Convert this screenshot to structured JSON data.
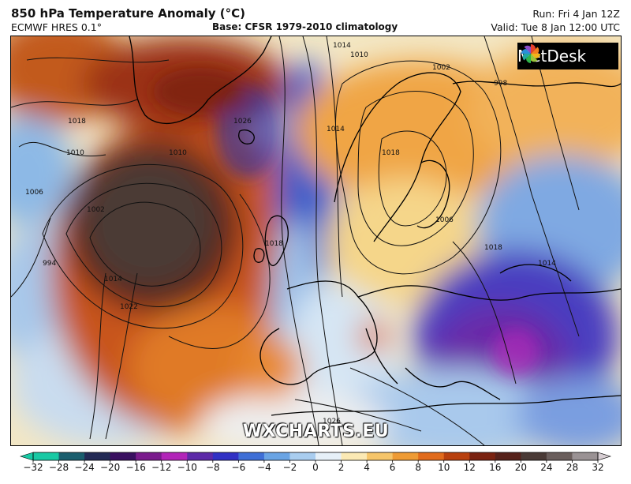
{
  "header": {
    "title": "850 hPa Temperature Anomaly (°C)",
    "model": "ECMWF HRES 0.1°",
    "base": "Base: CFSR 1979-2010 climatology",
    "run": "Run: Fri 4 Jan 12Z",
    "valid": "Valid: Tue 8 Jan 12:00 UTC"
  },
  "logo": {
    "text": "MetDesk"
  },
  "watermark": "WXCHARTS.EU",
  "isobar_labels": [
    "1014",
    "1010",
    "1002",
    "998",
    "1018",
    "1010",
    "1026",
    "1014",
    "1010",
    "1006",
    "1002",
    "1018",
    "994",
    "1014",
    "1022",
    "1018",
    "1006",
    "1018",
    "1026",
    "1014"
  ],
  "colorbar": {
    "ticks": [
      "−32",
      "−28",
      "−24",
      "−20",
      "−16",
      "−12",
      "−10",
      "−8",
      "−6",
      "−4",
      "−2",
      "0",
      "2",
      "4",
      "6",
      "8",
      "10",
      "12",
      "16",
      "20",
      "24",
      "28",
      "32"
    ],
    "colors": [
      "#18c9a4",
      "#1a5e6e",
      "#232a55",
      "#3a1060",
      "#7a1b8c",
      "#b225b8",
      "#5d2aa8",
      "#3131c4",
      "#3f6fd6",
      "#6aa4e4",
      "#a9cdef",
      "#e6f0f8",
      "#fbe9b4",
      "#f6c56a",
      "#ee9b35",
      "#e16b1c",
      "#b8400e",
      "#7a2210",
      "#56211a",
      "#4a3a36",
      "#6a5e5c",
      "#9a9294",
      "#d6cdd2"
    ]
  }
}
